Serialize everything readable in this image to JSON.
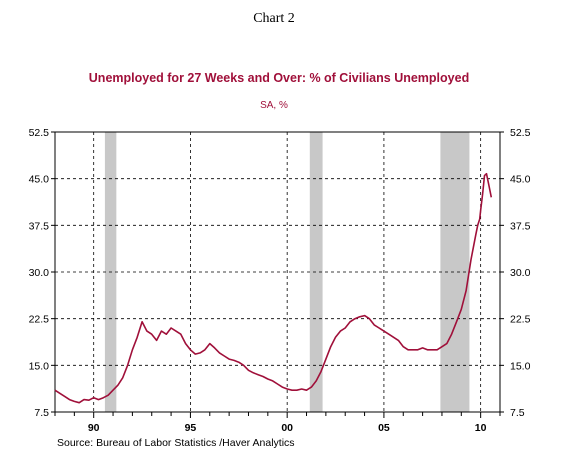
{
  "chart_data": {
    "type": "line",
    "chart_label": "Chart 2",
    "title": "Unemployed for 27 Weeks and Over: % of Civilians Unemployed",
    "subtitle": "SA, %",
    "source": "Source:  Bureau of Labor Statistics /Haver Analytics",
    "ylim": [
      7.5,
      52.5
    ],
    "xlim": [
      1988.0,
      2011.0
    ],
    "y_ticks": [
      7.5,
      15.0,
      22.5,
      30.0,
      37.5,
      45.0,
      52.5
    ],
    "y_tick_labels": [
      "7.5",
      "15.0",
      "22.5",
      "30.0",
      "37.5",
      "45.0",
      "52.5"
    ],
    "x_ticks": [
      1990,
      1995,
      2000,
      2005,
      2010
    ],
    "x_tick_labels": [
      "90",
      "95",
      "00",
      "05",
      "10"
    ],
    "grid": true,
    "recessions": [
      [
        1990.58,
        1991.17
      ],
      [
        2001.17,
        2001.83
      ],
      [
        2007.92,
        2009.42
      ]
    ],
    "colors": {
      "line": "#a0103a",
      "title": "#a0103a",
      "recession": "#c8c8c8"
    },
    "series": [
      {
        "x": [
          1988.0,
          1988.25,
          1988.5,
          1988.75,
          1989.0,
          1989.25,
          1989.5,
          1989.75,
          1990.0,
          1990.25,
          1990.5,
          1990.75,
          1991.0,
          1991.25,
          1991.5,
          1991.75,
          1992.0,
          1992.25,
          1992.5,
          1992.75,
          1993.0,
          1993.25,
          1993.5,
          1993.75,
          1994.0,
          1994.25,
          1994.5,
          1994.75,
          1995.0,
          1995.25,
          1995.5,
          1995.75,
          1996.0,
          1996.25,
          1996.5,
          1996.75,
          1997.0,
          1997.25,
          1997.5,
          1997.75,
          1998.0,
          1998.25,
          1998.5,
          1998.75,
          1999.0,
          1999.25,
          1999.5,
          1999.75,
          2000.0,
          2000.25,
          2000.5,
          2000.75,
          2001.0,
          2001.25,
          2001.5,
          2001.75,
          2002.0,
          2002.25,
          2002.5,
          2002.75,
          2003.0,
          2003.25,
          2003.5,
          2003.75,
          2004.0,
          2004.25,
          2004.5,
          2004.75,
          2005.0,
          2005.25,
          2005.5,
          2005.75,
          2006.0,
          2006.25,
          2006.5,
          2006.75,
          2007.0,
          2007.25,
          2007.5,
          2007.75,
          2008.0,
          2008.25,
          2008.5,
          2008.75,
          2009.0,
          2009.25,
          2009.5,
          2009.75,
          2009.85,
          2009.95,
          2010.0,
          2010.1,
          2010.2,
          2010.3,
          2010.42,
          2010.55
        ],
        "values": [
          11.0,
          10.5,
          10.0,
          9.5,
          9.2,
          9.0,
          9.5,
          9.4,
          9.8,
          9.5,
          9.8,
          10.2,
          11.0,
          11.8,
          13.0,
          15.0,
          17.5,
          19.5,
          22.0,
          20.5,
          20.0,
          19.0,
          20.5,
          20.0,
          21.0,
          20.5,
          20.0,
          18.5,
          17.5,
          16.8,
          17.0,
          17.5,
          18.5,
          17.8,
          17.0,
          16.5,
          16.0,
          15.8,
          15.5,
          15.0,
          14.2,
          13.8,
          13.5,
          13.2,
          12.8,
          12.5,
          12.0,
          11.5,
          11.2,
          11.0,
          11.0,
          11.2,
          11.0,
          11.5,
          12.5,
          14.0,
          16.0,
          18.0,
          19.5,
          20.5,
          21.0,
          22.0,
          22.5,
          22.8,
          23.0,
          22.5,
          21.5,
          21.0,
          20.5,
          20.0,
          19.5,
          19.0,
          18.0,
          17.5,
          17.5,
          17.5,
          17.8,
          17.5,
          17.5,
          17.5,
          18.0,
          18.5,
          20.0,
          22.0,
          24.0,
          27.0,
          32.0,
          36.0,
          37.5,
          38.5,
          40.0,
          42.5,
          45.5,
          45.8,
          44.0,
          42.0
        ]
      }
    ]
  }
}
